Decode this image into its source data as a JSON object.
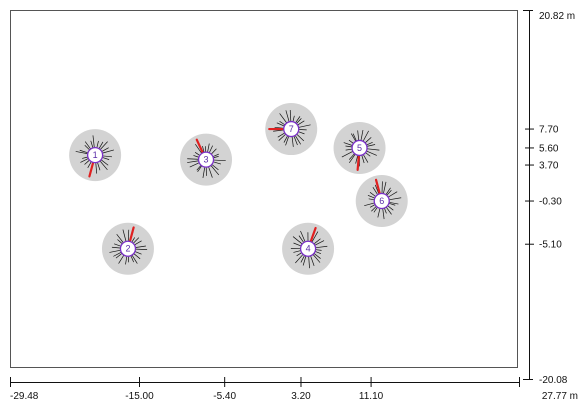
{
  "x_axis": {
    "min_label": "-29.48",
    "max_label": "27.77 m",
    "ticks": [
      {
        "value": -15.0,
        "label": "-15.00"
      },
      {
        "value": -5.4,
        "label": "-5.40"
      },
      {
        "value": 3.2,
        "label": "3.20"
      },
      {
        "value": 11.1,
        "label": "11.10"
      }
    ]
  },
  "y_axis": {
    "max_label": "20.82 m",
    "min_label": "-20.08",
    "ticks": [
      {
        "value": 7.7,
        "label": "7.70"
      },
      {
        "value": 5.6,
        "label": "5.60"
      },
      {
        "value": 3.7,
        "label": "3.70"
      },
      {
        "value": -0.3,
        "label": "-0.30"
      },
      {
        "value": -5.1,
        "label": "-5.10"
      }
    ]
  },
  "stations": [
    {
      "id": "1",
      "x": -20.0,
      "y": 4.8
    },
    {
      "id": "2",
      "x": -16.3,
      "y": -5.6
    },
    {
      "id": "3",
      "x": -7.5,
      "y": 4.3
    },
    {
      "id": "4",
      "x": 4.0,
      "y": -5.6
    },
    {
      "id": "5",
      "x": 9.8,
      "y": 5.6
    },
    {
      "id": "6",
      "x": 12.3,
      "y": -0.3
    },
    {
      "id": "7",
      "x": 2.1,
      "y": 7.7
    }
  ],
  "colors": {
    "disc": "#d3d3d3",
    "ring": "#7a2fc8",
    "red_line": "#e02020",
    "black_line": "#111111",
    "frame": "#555555"
  }
}
